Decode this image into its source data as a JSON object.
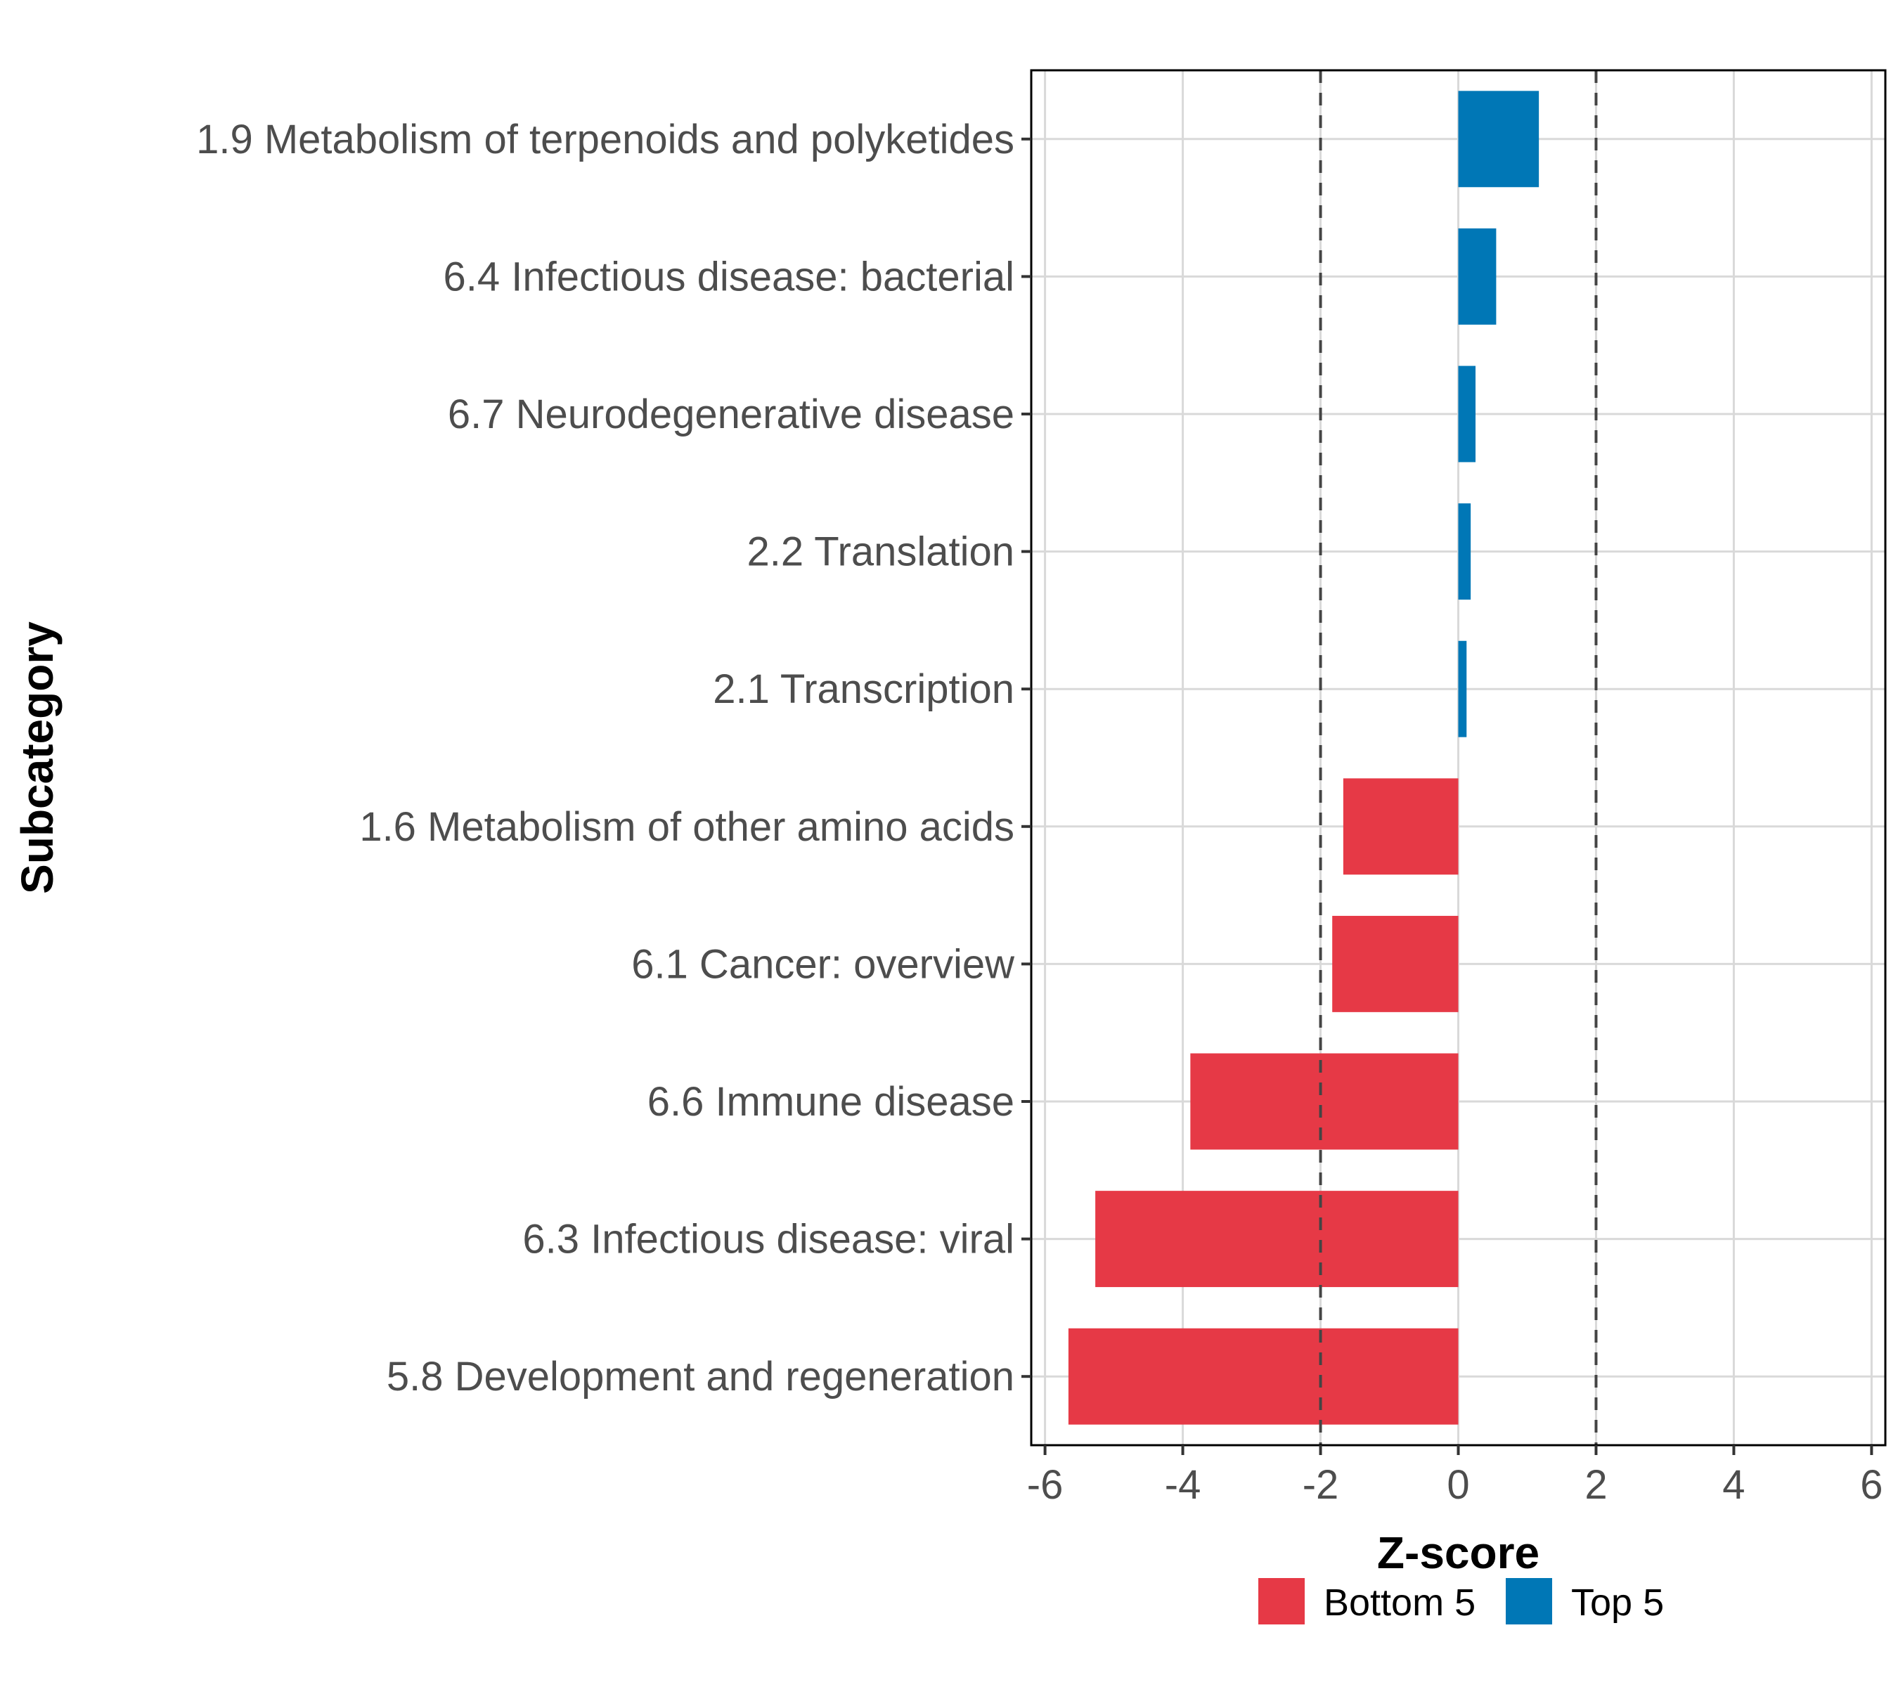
{
  "chart_data": {
    "type": "bar",
    "orientation": "horizontal",
    "title": "",
    "xlabel": "Z-score",
    "ylabel": "Subcategory",
    "xlim": [
      -6.2,
      6.2
    ],
    "xticks": [
      -6,
      -4,
      -2,
      0,
      2,
      4,
      6
    ],
    "xtick_labels": [
      "-6",
      "-4",
      "-2",
      "0",
      "2",
      "4",
      "6"
    ],
    "reference_lines": [
      -2,
      2
    ],
    "grid": true,
    "categories": [
      "1.9 Metabolism of terpenoids and polyketides",
      "6.4 Infectious disease: bacterial",
      "6.7 Neurodegenerative disease",
      "2.2 Translation",
      "2.1 Transcription",
      "1.6 Metabolism of other amino acids",
      "6.1 Cancer: overview",
      "6.6 Immune disease",
      "6.3 Infectious disease: viral",
      "5.8 Development and regeneration"
    ],
    "values": [
      1.17,
      0.55,
      0.25,
      0.18,
      0.12,
      -1.67,
      -1.83,
      -3.89,
      -5.27,
      -5.66
    ],
    "groups": [
      "Top 5",
      "Top 5",
      "Top 5",
      "Top 5",
      "Top 5",
      "Bottom 5",
      "Bottom 5",
      "Bottom 5",
      "Bottom 5",
      "Bottom 5"
    ],
    "legend": {
      "position": "bottom",
      "entries": [
        {
          "label": "Bottom 5",
          "color": "#E63946"
        },
        {
          "label": "Top 5",
          "color": "#0077B6"
        }
      ]
    },
    "colors": {
      "Bottom 5": "#E63946",
      "Top 5": "#0077B6"
    }
  }
}
